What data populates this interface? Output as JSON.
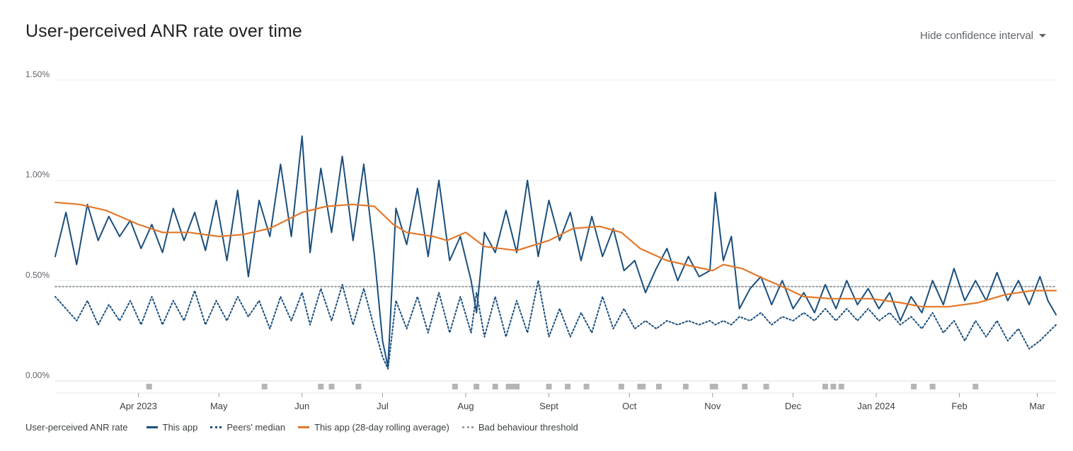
{
  "chart_data": {
    "type": "line",
    "title": "User-perceived ANR rate over time",
    "control": {
      "label": "Hide confidence interval",
      "icon": "caret-down-icon"
    },
    "y_ticks": [
      "0.00%",
      "0.50%",
      "1.00%",
      "1.50%"
    ],
    "ylim": [
      0,
      1.5
    ],
    "y_unit": "%",
    "xlim": [
      "2023-03-01",
      "2024-03-08"
    ],
    "x_ticks": [
      {
        "date": "2023-04-01",
        "label": "Apr 2023"
      },
      {
        "date": "2023-05-01",
        "label": "May"
      },
      {
        "date": "2023-06-01",
        "label": "Jun"
      },
      {
        "date": "2023-07-01",
        "label": "Jul"
      },
      {
        "date": "2023-08-01",
        "label": "Aug"
      },
      {
        "date": "2023-09-01",
        "label": "Sept"
      },
      {
        "date": "2023-10-01",
        "label": "Oct"
      },
      {
        "date": "2023-11-01",
        "label": "Nov"
      },
      {
        "date": "2023-12-01",
        "label": "Dec"
      },
      {
        "date": "2024-01-01",
        "label": "Jan 2024"
      },
      {
        "date": "2024-02-01",
        "label": "Feb"
      },
      {
        "date": "2024-03-01",
        "label": "Mar"
      }
    ],
    "grid": true,
    "legend_position": "bottom-left",
    "legend_title": "User-perceived ANR rate",
    "colors": {
      "this_app": "#1a4f7d",
      "peers": "#1a4f7d",
      "rolling": "#e3782a",
      "threshold": "#9aa0a6",
      "marker": "#b5b5b5"
    },
    "series": [
      {
        "name": "This app",
        "style": "solid",
        "points": [
          [
            "2023-03-01",
            0.62
          ],
          [
            "2023-03-05",
            0.84
          ],
          [
            "2023-03-09",
            0.58
          ],
          [
            "2023-03-13",
            0.88
          ],
          [
            "2023-03-17",
            0.7
          ],
          [
            "2023-03-21",
            0.82
          ],
          [
            "2023-03-25",
            0.72
          ],
          [
            "2023-03-29",
            0.8
          ],
          [
            "2023-04-02",
            0.66
          ],
          [
            "2023-04-06",
            0.78
          ],
          [
            "2023-04-10",
            0.64
          ],
          [
            "2023-04-14",
            0.86
          ],
          [
            "2023-04-18",
            0.7
          ],
          [
            "2023-04-22",
            0.84
          ],
          [
            "2023-04-26",
            0.65
          ],
          [
            "2023-04-30",
            0.9
          ],
          [
            "2023-05-04",
            0.6
          ],
          [
            "2023-05-08",
            0.95
          ],
          [
            "2023-05-12",
            0.52
          ],
          [
            "2023-05-16",
            0.9
          ],
          [
            "2023-05-20",
            0.72
          ],
          [
            "2023-05-24",
            1.08
          ],
          [
            "2023-05-28",
            0.72
          ],
          [
            "2023-06-01",
            1.22
          ],
          [
            "2023-06-04",
            0.64
          ],
          [
            "2023-06-08",
            1.06
          ],
          [
            "2023-06-12",
            0.74
          ],
          [
            "2023-06-16",
            1.12
          ],
          [
            "2023-06-20",
            0.7
          ],
          [
            "2023-06-24",
            1.08
          ],
          [
            "2023-06-28",
            0.62
          ],
          [
            "2023-07-01",
            0.2
          ],
          [
            "2023-07-03",
            0.07
          ],
          [
            "2023-07-06",
            0.86
          ],
          [
            "2023-07-10",
            0.68
          ],
          [
            "2023-07-14",
            0.96
          ],
          [
            "2023-07-18",
            0.62
          ],
          [
            "2023-07-22",
            1.0
          ],
          [
            "2023-07-26",
            0.6
          ],
          [
            "2023-07-30",
            0.72
          ],
          [
            "2023-08-03",
            0.5
          ],
          [
            "2023-08-05",
            0.34
          ],
          [
            "2023-08-08",
            0.74
          ],
          [
            "2023-08-12",
            0.64
          ],
          [
            "2023-08-16",
            0.85
          ],
          [
            "2023-08-20",
            0.64
          ],
          [
            "2023-08-24",
            1.0
          ],
          [
            "2023-08-28",
            0.62
          ],
          [
            "2023-09-01",
            0.9
          ],
          [
            "2023-09-05",
            0.7
          ],
          [
            "2023-09-09",
            0.84
          ],
          [
            "2023-09-13",
            0.6
          ],
          [
            "2023-09-17",
            0.82
          ],
          [
            "2023-09-21",
            0.62
          ],
          [
            "2023-09-25",
            0.76
          ],
          [
            "2023-09-29",
            0.55
          ],
          [
            "2023-10-03",
            0.6
          ],
          [
            "2023-10-07",
            0.44
          ],
          [
            "2023-10-11",
            0.56
          ],
          [
            "2023-10-15",
            0.66
          ],
          [
            "2023-10-19",
            0.5
          ],
          [
            "2023-10-23",
            0.62
          ],
          [
            "2023-10-27",
            0.52
          ],
          [
            "2023-10-31",
            0.55
          ],
          [
            "2023-11-02",
            0.94
          ],
          [
            "2023-11-05",
            0.6
          ],
          [
            "2023-11-08",
            0.72
          ],
          [
            "2023-11-11",
            0.36
          ],
          [
            "2023-11-15",
            0.46
          ],
          [
            "2023-11-19",
            0.52
          ],
          [
            "2023-11-23",
            0.38
          ],
          [
            "2023-11-27",
            0.5
          ],
          [
            "2023-12-01",
            0.36
          ],
          [
            "2023-12-05",
            0.44
          ],
          [
            "2023-12-09",
            0.34
          ],
          [
            "2023-12-13",
            0.48
          ],
          [
            "2023-12-17",
            0.36
          ],
          [
            "2023-12-21",
            0.5
          ],
          [
            "2023-12-25",
            0.38
          ],
          [
            "2023-12-29",
            0.46
          ],
          [
            "2024-01-02",
            0.36
          ],
          [
            "2024-01-06",
            0.44
          ],
          [
            "2024-01-10",
            0.3
          ],
          [
            "2024-01-14",
            0.42
          ],
          [
            "2024-01-18",
            0.34
          ],
          [
            "2024-01-22",
            0.5
          ],
          [
            "2024-01-26",
            0.38
          ],
          [
            "2024-01-30",
            0.56
          ],
          [
            "2024-02-03",
            0.4
          ],
          [
            "2024-02-07",
            0.5
          ],
          [
            "2024-02-11",
            0.4
          ],
          [
            "2024-02-15",
            0.54
          ],
          [
            "2024-02-19",
            0.4
          ],
          [
            "2024-02-23",
            0.5
          ],
          [
            "2024-02-27",
            0.38
          ],
          [
            "2024-03-02",
            0.52
          ],
          [
            "2024-03-05",
            0.4
          ],
          [
            "2024-03-08",
            0.33
          ]
        ]
      },
      {
        "name": "Peers' median",
        "style": "dotted",
        "points": [
          [
            "2023-03-01",
            0.42
          ],
          [
            "2023-03-05",
            0.36
          ],
          [
            "2023-03-09",
            0.3
          ],
          [
            "2023-03-13",
            0.4
          ],
          [
            "2023-03-17",
            0.28
          ],
          [
            "2023-03-21",
            0.38
          ],
          [
            "2023-03-25",
            0.3
          ],
          [
            "2023-03-29",
            0.4
          ],
          [
            "2023-04-02",
            0.28
          ],
          [
            "2023-04-06",
            0.42
          ],
          [
            "2023-04-10",
            0.28
          ],
          [
            "2023-04-14",
            0.4
          ],
          [
            "2023-04-18",
            0.3
          ],
          [
            "2023-04-22",
            0.45
          ],
          [
            "2023-04-26",
            0.28
          ],
          [
            "2023-04-30",
            0.4
          ],
          [
            "2023-05-04",
            0.3
          ],
          [
            "2023-05-08",
            0.42
          ],
          [
            "2023-05-12",
            0.32
          ],
          [
            "2023-05-16",
            0.4
          ],
          [
            "2023-05-20",
            0.26
          ],
          [
            "2023-05-24",
            0.42
          ],
          [
            "2023-05-28",
            0.3
          ],
          [
            "2023-06-01",
            0.44
          ],
          [
            "2023-06-04",
            0.28
          ],
          [
            "2023-06-08",
            0.46
          ],
          [
            "2023-06-12",
            0.3
          ],
          [
            "2023-06-16",
            0.48
          ],
          [
            "2023-06-20",
            0.28
          ],
          [
            "2023-06-24",
            0.46
          ],
          [
            "2023-06-28",
            0.26
          ],
          [
            "2023-07-01",
            0.12
          ],
          [
            "2023-07-03",
            0.06
          ],
          [
            "2023-07-06",
            0.4
          ],
          [
            "2023-07-10",
            0.26
          ],
          [
            "2023-07-14",
            0.42
          ],
          [
            "2023-07-18",
            0.24
          ],
          [
            "2023-07-22",
            0.44
          ],
          [
            "2023-07-26",
            0.24
          ],
          [
            "2023-07-30",
            0.42
          ],
          [
            "2023-08-03",
            0.24
          ],
          [
            "2023-08-05",
            0.44
          ],
          [
            "2023-08-08",
            0.22
          ],
          [
            "2023-08-12",
            0.42
          ],
          [
            "2023-08-16",
            0.22
          ],
          [
            "2023-08-20",
            0.4
          ],
          [
            "2023-08-24",
            0.24
          ],
          [
            "2023-08-28",
            0.5
          ],
          [
            "2023-09-01",
            0.22
          ],
          [
            "2023-09-05",
            0.36
          ],
          [
            "2023-09-09",
            0.22
          ],
          [
            "2023-09-13",
            0.34
          ],
          [
            "2023-09-17",
            0.24
          ],
          [
            "2023-09-21",
            0.42
          ],
          [
            "2023-09-25",
            0.26
          ],
          [
            "2023-09-29",
            0.36
          ],
          [
            "2023-10-03",
            0.26
          ],
          [
            "2023-10-07",
            0.3
          ],
          [
            "2023-10-11",
            0.26
          ],
          [
            "2023-10-15",
            0.3
          ],
          [
            "2023-10-19",
            0.28
          ],
          [
            "2023-10-23",
            0.3
          ],
          [
            "2023-10-27",
            0.28
          ],
          [
            "2023-10-31",
            0.3
          ],
          [
            "2023-11-02",
            0.28
          ],
          [
            "2023-11-05",
            0.3
          ],
          [
            "2023-11-08",
            0.28
          ],
          [
            "2023-11-11",
            0.32
          ],
          [
            "2023-11-15",
            0.3
          ],
          [
            "2023-11-19",
            0.34
          ],
          [
            "2023-11-23",
            0.28
          ],
          [
            "2023-11-27",
            0.32
          ],
          [
            "2023-12-01",
            0.3
          ],
          [
            "2023-12-05",
            0.34
          ],
          [
            "2023-12-09",
            0.3
          ],
          [
            "2023-12-13",
            0.36
          ],
          [
            "2023-12-17",
            0.3
          ],
          [
            "2023-12-21",
            0.36
          ],
          [
            "2023-12-25",
            0.3
          ],
          [
            "2023-12-29",
            0.36
          ],
          [
            "2024-01-02",
            0.3
          ],
          [
            "2024-01-06",
            0.34
          ],
          [
            "2024-01-10",
            0.28
          ],
          [
            "2024-01-14",
            0.32
          ],
          [
            "2024-01-18",
            0.26
          ],
          [
            "2024-01-22",
            0.34
          ],
          [
            "2024-01-26",
            0.24
          ],
          [
            "2024-01-30",
            0.3
          ],
          [
            "2024-02-03",
            0.2
          ],
          [
            "2024-02-07",
            0.3
          ],
          [
            "2024-02-11",
            0.22
          ],
          [
            "2024-02-15",
            0.3
          ],
          [
            "2024-02-19",
            0.2
          ],
          [
            "2024-02-23",
            0.26
          ],
          [
            "2024-02-27",
            0.16
          ],
          [
            "2024-03-02",
            0.2
          ],
          [
            "2024-03-05",
            0.24
          ],
          [
            "2024-03-08",
            0.28
          ]
        ]
      },
      {
        "name": "This app (28-day rolling average)",
        "style": "solid",
        "points": [
          [
            "2023-03-01",
            0.89
          ],
          [
            "2023-03-10",
            0.88
          ],
          [
            "2023-03-20",
            0.85
          ],
          [
            "2023-04-01",
            0.78
          ],
          [
            "2023-04-10",
            0.74
          ],
          [
            "2023-04-20",
            0.74
          ],
          [
            "2023-05-01",
            0.72
          ],
          [
            "2023-05-10",
            0.73
          ],
          [
            "2023-05-20",
            0.76
          ],
          [
            "2023-06-01",
            0.84
          ],
          [
            "2023-06-10",
            0.87
          ],
          [
            "2023-06-20",
            0.88
          ],
          [
            "2023-06-28",
            0.87
          ],
          [
            "2023-07-05",
            0.78
          ],
          [
            "2023-07-10",
            0.74
          ],
          [
            "2023-07-20",
            0.72
          ],
          [
            "2023-07-25",
            0.7
          ],
          [
            "2023-08-01",
            0.74
          ],
          [
            "2023-08-08",
            0.67
          ],
          [
            "2023-08-20",
            0.65
          ],
          [
            "2023-09-01",
            0.7
          ],
          [
            "2023-09-10",
            0.76
          ],
          [
            "2023-09-20",
            0.77
          ],
          [
            "2023-09-28",
            0.74
          ],
          [
            "2023-10-05",
            0.66
          ],
          [
            "2023-10-15",
            0.6
          ],
          [
            "2023-10-25",
            0.57
          ],
          [
            "2023-11-01",
            0.55
          ],
          [
            "2023-11-05",
            0.58
          ],
          [
            "2023-11-12",
            0.56
          ],
          [
            "2023-11-20",
            0.51
          ],
          [
            "2023-11-27",
            0.47
          ],
          [
            "2023-12-05",
            0.42
          ],
          [
            "2023-12-15",
            0.41
          ],
          [
            "2023-12-30",
            0.41
          ],
          [
            "2024-01-10",
            0.39
          ],
          [
            "2024-01-18",
            0.37
          ],
          [
            "2024-01-28",
            0.37
          ],
          [
            "2024-02-08",
            0.39
          ],
          [
            "2024-02-18",
            0.43
          ],
          [
            "2024-02-28",
            0.45
          ],
          [
            "2024-03-08",
            0.45
          ]
        ]
      },
      {
        "name": "Bad behaviour threshold",
        "style": "dotted",
        "points": [
          [
            "2023-03-01",
            0.47
          ],
          [
            "2024-03-08",
            0.47
          ]
        ]
      }
    ],
    "event_markers": [
      "2023-04-05",
      "2023-05-18",
      "2023-06-08",
      "2023-06-12",
      "2023-06-22",
      "2023-07-28",
      "2023-08-05",
      "2023-08-12",
      "2023-08-17",
      "2023-08-18",
      "2023-08-20",
      "2023-09-01",
      "2023-09-08",
      "2023-09-15",
      "2023-09-28",
      "2023-10-05",
      "2023-10-06",
      "2023-10-12",
      "2023-10-22",
      "2023-11-01",
      "2023-11-02",
      "2023-11-13",
      "2023-11-21",
      "2023-12-13",
      "2023-12-16",
      "2023-12-19",
      "2024-01-15",
      "2024-01-22",
      "2024-02-07"
    ],
    "legend": [
      {
        "label": "This app",
        "swatch": "solid"
      },
      {
        "label": "Peers' median",
        "swatch": "dot"
      },
      {
        "label": "This app (28-day rolling average)",
        "swatch": "orange"
      },
      {
        "label": "Bad behaviour threshold",
        "swatch": "grey"
      }
    ]
  }
}
